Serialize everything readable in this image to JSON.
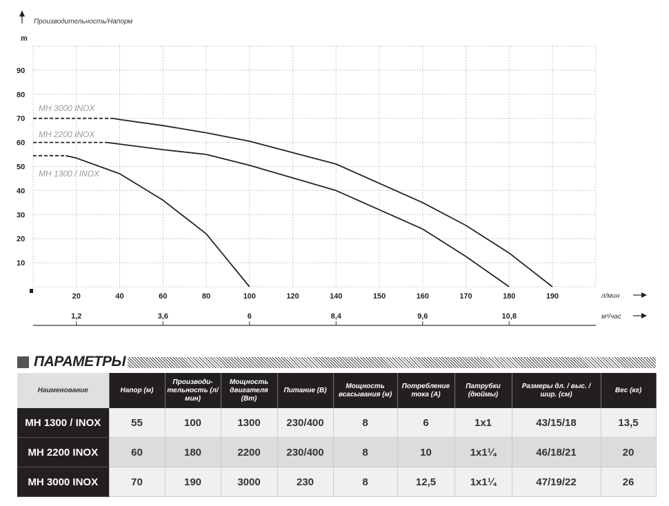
{
  "chart_data": {
    "type": "line",
    "title": "Производительность/Напорм",
    "ylabel": "m",
    "ylim": [
      0,
      100
    ],
    "yticks": [
      10,
      20,
      30,
      40,
      50,
      60,
      70,
      80,
      90
    ],
    "x_ticks_lmin": [
      "20",
      "40",
      "60",
      "80",
      "100",
      "120",
      "140",
      "150",
      "160",
      "170",
      "180",
      "190"
    ],
    "x_tick_values": [
      0,
      20,
      40,
      60,
      80,
      100,
      120,
      140,
      150,
      160,
      170,
      180,
      190
    ],
    "xlabel": "л/мин",
    "x2_ticks": [
      {
        "label": "1,2",
        "at": 20
      },
      {
        "label": "3,6",
        "at": 60
      },
      {
        "label": "6",
        "at": 100
      },
      {
        "label": "8,4",
        "at": 140
      },
      {
        "label": "9,6",
        "at": 160
      },
      {
        "label": "10,8",
        "at": 180
      }
    ],
    "x2label": "м³/час",
    "grid": true,
    "series": [
      {
        "name": "MH 3000 INOX",
        "dashed_until": 37,
        "points": [
          [
            0,
            70
          ],
          [
            37,
            70
          ],
          [
            40,
            69.5
          ],
          [
            60,
            67
          ],
          [
            80,
            64
          ],
          [
            100,
            60.5
          ],
          [
            140,
            51
          ],
          [
            150,
            43
          ],
          [
            160,
            35
          ],
          [
            170,
            25.5
          ],
          [
            180,
            14
          ],
          [
            190,
            0
          ]
        ]
      },
      {
        "name": "MH 2200 INOX",
        "dashed_until": 34,
        "points": [
          [
            0,
            60
          ],
          [
            34,
            60
          ],
          [
            60,
            57
          ],
          [
            80,
            55
          ],
          [
            100,
            50.5
          ],
          [
            140,
            40
          ],
          [
            150,
            32
          ],
          [
            160,
            24
          ],
          [
            170,
            12.6
          ],
          [
            180,
            0
          ]
        ]
      },
      {
        "name": "MH 1300 / INOX",
        "dashed_until": 15,
        "points": [
          [
            0,
            54.5
          ],
          [
            15,
            54.5
          ],
          [
            20,
            53.5
          ],
          [
            40,
            47
          ],
          [
            60,
            36
          ],
          [
            80,
            22
          ],
          [
            100,
            0
          ]
        ]
      }
    ]
  },
  "params": {
    "title": "ПАРАМЕТРЫ",
    "headers": [
      "Наименование",
      "Напор (м)",
      "Производи- тельность (л/мин)",
      "Мощность двигателя (Вт)",
      "Питание (В)",
      "Мощность всасывания (м)",
      "Потребление тока (А)",
      "Патрубки (дюймы)",
      "Размеры дл. / выс. / шир. (см)",
      "Вес (кг)"
    ],
    "rows": [
      [
        "MH 1300 / INOX",
        "55",
        "100",
        "1300",
        "230/400",
        "8",
        "6",
        "1x1",
        "43/15/18",
        "13,5"
      ],
      [
        "MH 2200 INOX",
        "60",
        "180",
        "2200",
        "230/400",
        "8",
        "10",
        "1x1¼",
        "46/18/21",
        "20"
      ],
      [
        "MH 3000 INOX",
        "70",
        "190",
        "3000",
        "230",
        "8",
        "12,5",
        "1x1¼",
        "47/19/22",
        "26"
      ]
    ]
  }
}
